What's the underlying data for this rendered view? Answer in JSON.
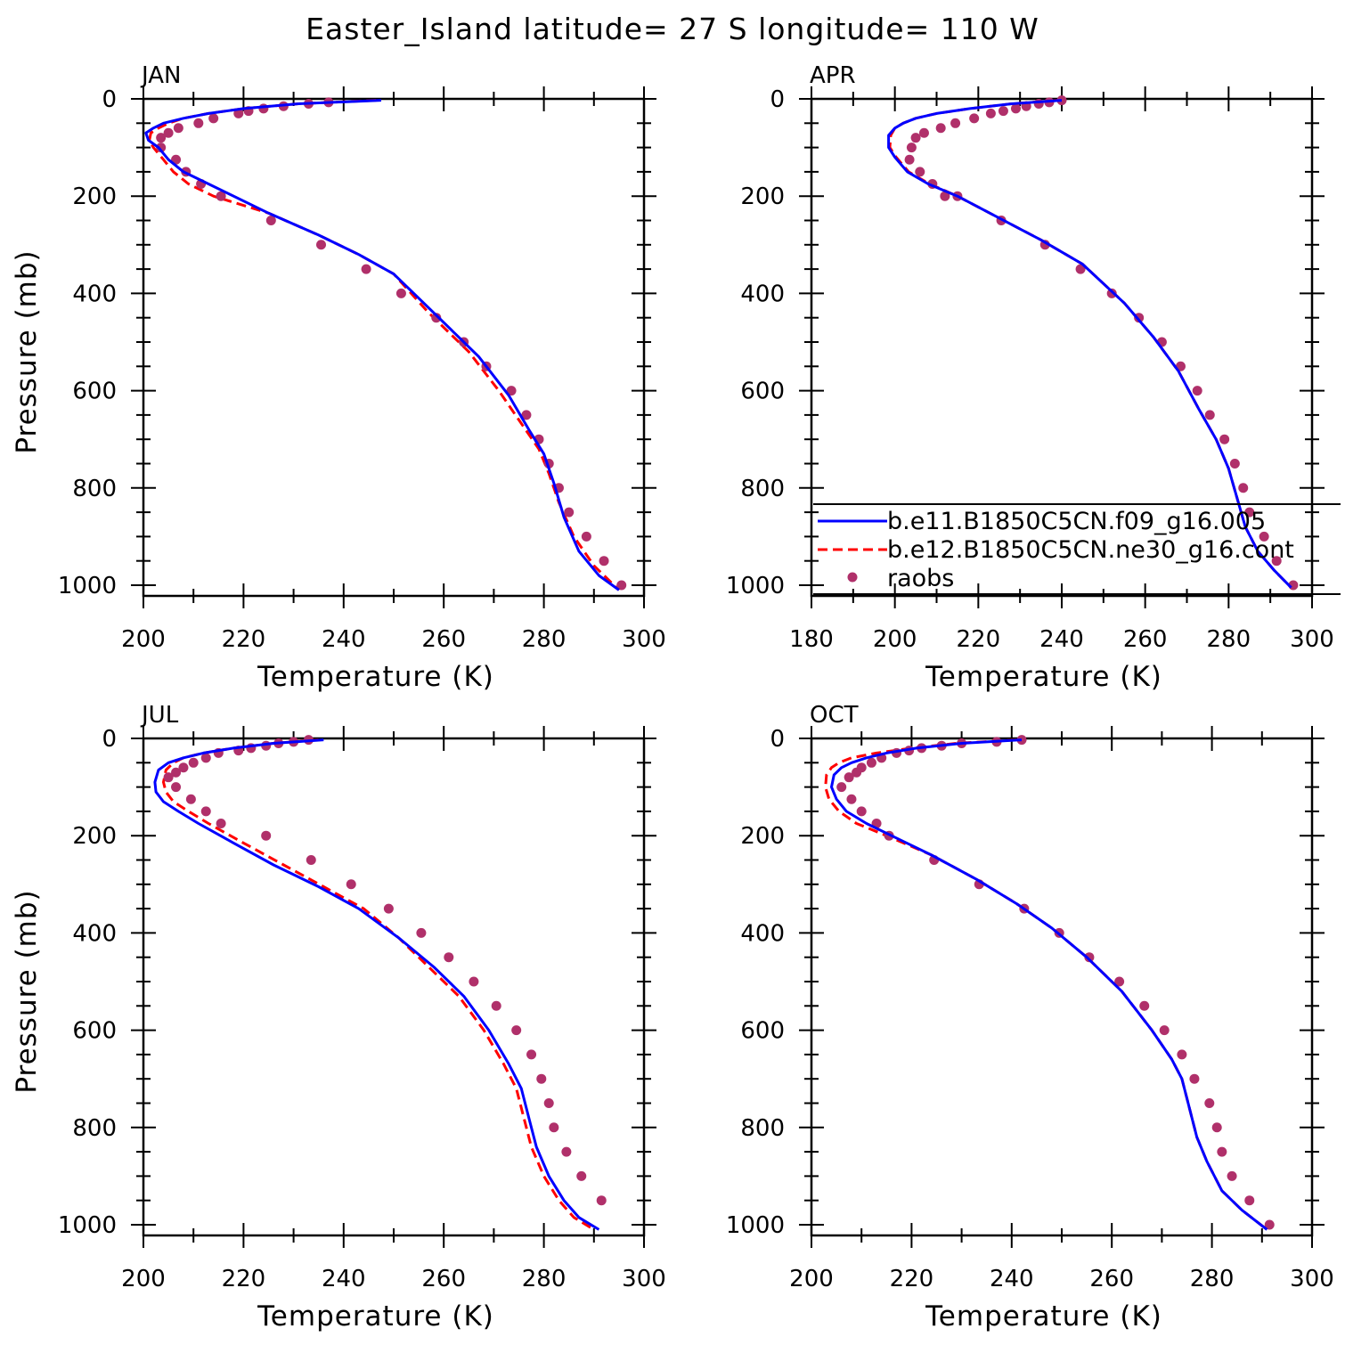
{
  "figure": {
    "title": "Easter_Island  latitude= 27 S longitude= 110 W"
  },
  "legend": {
    "entries": [
      {
        "label": "b.e11.B1850C5CN.f09_g16.005",
        "color": "#0000ff",
        "style": "solid"
      },
      {
        "label": "b.e12.B1850C5CN.ne30_g16.cont",
        "color": "#ff0000",
        "style": "dashed"
      },
      {
        "label": "raobs",
        "color": "#b0306a",
        "style": "markers"
      }
    ]
  },
  "colors": {
    "model_fv": "#0000ff",
    "model_se": "#ff0000",
    "obs": "#b0306a",
    "axes": "#000000"
  },
  "chart_data": [
    {
      "type": "line",
      "title": "JAN",
      "xlabel": "Temperature (K)",
      "ylabel": "Pressure (mb)",
      "xlim": [
        200,
        300
      ],
      "ylim": [
        1000,
        0
      ],
      "xticks": [
        200,
        220,
        240,
        260,
        280,
        300
      ],
      "yticks": [
        0,
        200,
        400,
        600,
        800,
        1000
      ],
      "series": [
        {
          "name": "b.e11.B1850C5CN.f09_g16.005",
          "kind": "line",
          "x": [
            247.5,
            231,
            220,
            213,
            208,
            204,
            202,
            200.5,
            201,
            203,
            205,
            208,
            213,
            225,
            235,
            243,
            250,
            258,
            267,
            273,
            277,
            280,
            282,
            284,
            287,
            291,
            295
          ],
          "y": [
            3,
            10,
            20,
            30,
            40,
            50,
            60,
            70,
            85,
            100,
            125,
            150,
            175,
            235,
            280,
            320,
            360,
            440,
            530,
            610,
            680,
            730,
            790,
            860,
            930,
            980,
            1010
          ]
        },
        {
          "name": "b.e12.B1850C5CN.ne30_g16.cont",
          "kind": "dashed",
          "x": [
            246.5,
            231,
            220,
            213,
            208,
            205,
            203,
            201.5,
            201.2,
            202,
            204,
            206,
            209,
            214,
            225,
            235,
            243,
            250,
            257,
            265,
            271,
            275,
            279,
            281,
            283,
            286,
            290,
            295
          ],
          "y": [
            3,
            10,
            20,
            30,
            40,
            50,
            60,
            70,
            85,
            100,
            125,
            150,
            175,
            200,
            235,
            280,
            320,
            360,
            440,
            520,
            600,
            660,
            720,
            770,
            830,
            900,
            960,
            1010
          ]
        },
        {
          "name": "raobs",
          "kind": "markers",
          "x": [
            237,
            233,
            228,
            224,
            221,
            219,
            214,
            211,
            207,
            205,
            203.5,
            203.5,
            206.5,
            208.5,
            211.5,
            215.5,
            225.5,
            235.5,
            244.5,
            251.5,
            258.5,
            264,
            268.5,
            273.5,
            276.5,
            279,
            281,
            283,
            285,
            288.5,
            292,
            295.5
          ],
          "y": [
            7,
            10,
            15,
            20,
            25,
            30,
            40,
            50,
            60,
            70,
            80,
            100,
            125,
            150,
            175,
            200,
            250,
            300,
            350,
            400,
            450,
            500,
            550,
            600,
            650,
            700,
            750,
            800,
            850,
            900,
            950,
            1000
          ]
        }
      ]
    },
    {
      "type": "line",
      "title": "APR",
      "xlabel": "Temperature (K)",
      "ylabel": "",
      "xlim": [
        180,
        300
      ],
      "ylim": [
        1000,
        0
      ],
      "xticks": [
        180,
        200,
        220,
        240,
        260,
        280,
        300
      ],
      "yticks": [
        0,
        200,
        400,
        600,
        800,
        1000
      ],
      "series": [
        {
          "name": "b.e11.B1850C5CN.f09_g16.005",
          "kind": "line",
          "x": [
            240,
            228,
            218,
            210,
            205,
            202,
            200,
            198.5,
            198.5,
            200,
            203,
            208,
            215,
            225,
            235,
            245,
            255,
            262,
            268,
            273,
            277,
            280,
            282,
            284,
            287,
            291,
            295
          ],
          "y": [
            3,
            10,
            20,
            30,
            40,
            50,
            60,
            75,
            100,
            120,
            150,
            175,
            200,
            245,
            290,
            340,
            420,
            490,
            560,
            640,
            700,
            760,
            820,
            880,
            930,
            970,
            1005
          ]
        },
        {
          "name": "b.e12.B1850C5CN.ne30_g16.cont",
          "kind": "dashed",
          "x": [
            239,
            228,
            218,
            210,
            205,
            202,
            200,
            199,
            198.8,
            200.3,
            203.3,
            208.3,
            215,
            225,
            235,
            245,
            255,
            262,
            268,
            273,
            277,
            280,
            282,
            284,
            287,
            291,
            295
          ],
          "y": [
            3,
            10,
            20,
            30,
            40,
            50,
            60,
            75,
            100,
            120,
            150,
            175,
            200,
            245,
            290,
            340,
            420,
            490,
            560,
            640,
            700,
            760,
            820,
            880,
            930,
            970,
            1005
          ]
        },
        {
          "name": "raobs",
          "kind": "markers",
          "x": [
            240,
            237,
            234.5,
            231.5,
            229,
            226,
            223,
            219,
            214.5,
            211,
            207,
            205,
            204,
            203.5,
            206,
            209,
            212,
            215,
            225.5,
            236,
            244.5,
            252,
            258.5,
            264,
            268.5,
            272.5,
            275.5,
            279,
            281.5,
            283.5,
            285,
            288.5,
            291.5,
            295.5
          ],
          "y": [
            3,
            7,
            10,
            15,
            20,
            25,
            30,
            40,
            50,
            60,
            70,
            80,
            100,
            125,
            150,
            175,
            200,
            200,
            250,
            300,
            350,
            400,
            450,
            500,
            550,
            600,
            650,
            700,
            750,
            800,
            850,
            900,
            950,
            1000
          ]
        }
      ]
    },
    {
      "type": "line",
      "title": "JUL",
      "xlabel": "Temperature (K)",
      "ylabel": "Pressure (mb)",
      "xlim": [
        200,
        300
      ],
      "ylim": [
        1000,
        0
      ],
      "xticks": [
        200,
        220,
        240,
        260,
        280,
        300
      ],
      "yticks": [
        0,
        200,
        400,
        600,
        800,
        1000
      ],
      "series": [
        {
          "name": "b.e11.B1850C5CN.f09_g16.005",
          "kind": "line",
          "x": [
            236,
            226,
            218,
            212,
            208,
            205,
            203,
            202.3,
            202.5,
            204,
            207,
            211,
            218,
            226,
            235,
            243,
            251,
            258,
            264,
            269,
            273,
            275.5,
            277,
            278.5,
            281,
            284,
            287,
            291
          ],
          "y": [
            3,
            10,
            20,
            30,
            40,
            50,
            65,
            90,
            110,
            130,
            150,
            175,
            215,
            260,
            305,
            350,
            410,
            470,
            530,
            600,
            670,
            720,
            780,
            840,
            900,
            950,
            985,
            1010
          ]
        },
        {
          "name": "b.e12.B1850C5CN.ne30_g16.cont",
          "kind": "dashed",
          "x": [
            235,
            226,
            218,
            212,
            208,
            206,
            204.5,
            204,
            204.5,
            206,
            209,
            213,
            220,
            228,
            236,
            244,
            251,
            257,
            263,
            268,
            272,
            274.5,
            276,
            277.5,
            280,
            283,
            286,
            290
          ],
          "y": [
            3,
            10,
            20,
            30,
            40,
            50,
            65,
            90,
            110,
            130,
            150,
            175,
            215,
            260,
            305,
            350,
            410,
            470,
            530,
            600,
            670,
            720,
            780,
            840,
            900,
            950,
            985,
            1010
          ]
        },
        {
          "name": "raobs",
          "kind": "markers",
          "x": [
            233,
            230,
            227,
            224.5,
            221.5,
            219,
            215,
            212.5,
            210,
            208,
            206.5,
            205,
            206.5,
            209.5,
            212.5,
            215.5,
            224.5,
            233.5,
            241.5,
            249,
            255.5,
            261,
            266,
            270.5,
            274.5,
            277.5,
            279.5,
            281,
            282,
            284.5,
            287.5,
            291.5
          ],
          "y": [
            3,
            7,
            10,
            15,
            20,
            25,
            30,
            40,
            50,
            60,
            70,
            80,
            100,
            125,
            150,
            175,
            200,
            250,
            300,
            350,
            400,
            450,
            500,
            550,
            600,
            650,
            700,
            750,
            800,
            850,
            900,
            950
          ]
        }
      ]
    },
    {
      "type": "line",
      "title": "OCT",
      "xlabel": "Temperature (K)",
      "ylabel": "",
      "xlim": [
        200,
        300
      ],
      "ylim": [
        1000,
        0
      ],
      "xticks": [
        200,
        220,
        240,
        260,
        280,
        300
      ],
      "yticks": [
        0,
        200,
        400,
        600,
        800,
        1000
      ],
      "series": [
        {
          "name": "b.e11.B1850C5CN.f09_g16.005",
          "kind": "line",
          "x": [
            242,
            230,
            221,
            215,
            211,
            208,
            206,
            204.5,
            204,
            205,
            207,
            211,
            216,
            224,
            233,
            241,
            248,
            255,
            262,
            268,
            272,
            274,
            275,
            276,
            277,
            279,
            282,
            286,
            291
          ],
          "y": [
            3,
            10,
            20,
            30,
            40,
            50,
            60,
            75,
            100,
            125,
            150,
            175,
            200,
            240,
            290,
            340,
            390,
            450,
            520,
            600,
            660,
            700,
            740,
            780,
            820,
            870,
            930,
            970,
            1010
          ]
        },
        {
          "name": "b.e12.B1850C5CN.ne30_g16.cont",
          "kind": "dashed",
          "x": [
            241,
            229,
            220,
            213,
            208,
            205.5,
            204,
            203,
            202.8,
            203.5,
            205.5,
            209,
            215,
            224,
            233,
            241,
            248,
            255,
            262,
            268,
            272,
            274,
            275,
            276,
            277,
            279,
            282,
            286,
            291
          ],
          "y": [
            3,
            10,
            20,
            30,
            40,
            50,
            60,
            75,
            100,
            125,
            150,
            175,
            200,
            240,
            290,
            340,
            390,
            450,
            520,
            600,
            660,
            700,
            740,
            780,
            820,
            870,
            930,
            970,
            1010
          ]
        },
        {
          "name": "raobs",
          "kind": "markers",
          "x": [
            242,
            237,
            230,
            226,
            222,
            219.5,
            217,
            214,
            212,
            210,
            209,
            207.5,
            206,
            208,
            210,
            213,
            215.5,
            224.5,
            233.5,
            242.5,
            249.5,
            255.5,
            261.5,
            266.5,
            270.5,
            274,
            276.5,
            279.5,
            281,
            282,
            284,
            287.5,
            291.5
          ],
          "y": [
            3,
            7,
            10,
            15,
            20,
            25,
            30,
            40,
            50,
            60,
            70,
            80,
            100,
            125,
            150,
            175,
            200,
            250,
            300,
            350,
            400,
            450,
            500,
            550,
            600,
            650,
            700,
            750,
            800,
            850,
            900,
            950,
            1000
          ]
        }
      ]
    }
  ]
}
